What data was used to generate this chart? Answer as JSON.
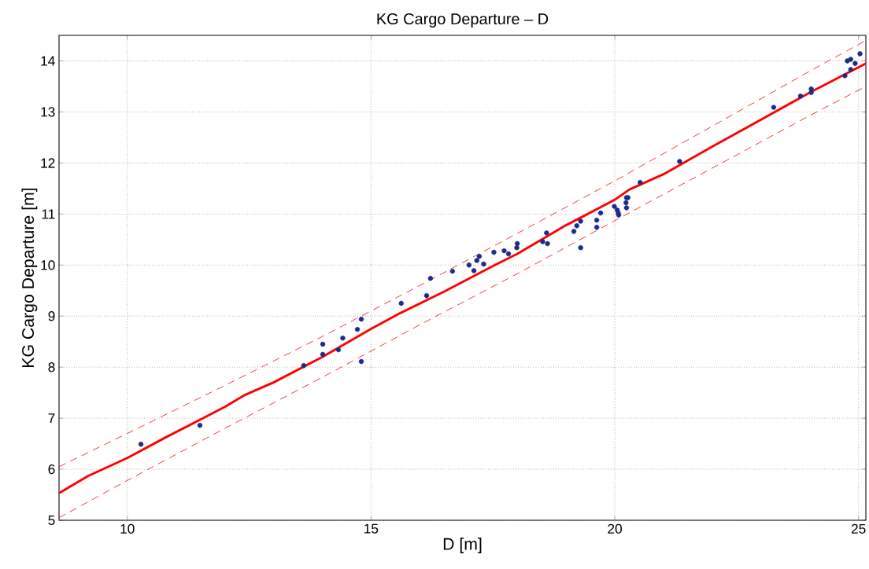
{
  "chart_data": {
    "type": "scatter",
    "title": "KG Cargo Departure – D",
    "xlabel": "D [m]",
    "ylabel": "KG Cargo Departure [m]",
    "xlim": [
      8.6,
      25.15
    ],
    "ylim": [
      5,
      14.5
    ],
    "xticks": [
      10,
      15,
      20,
      25
    ],
    "yticks": [
      5,
      6,
      7,
      8,
      9,
      10,
      11,
      12,
      13,
      14
    ],
    "grid": true,
    "series": [
      {
        "type": "line",
        "color": "#ff0000",
        "line_style": "solid",
        "marker": "none",
        "x": [
          8.6,
          9.2,
          10,
          10.8,
          12,
          12.4,
          13,
          14,
          15,
          15.6,
          16.5,
          17.5,
          18,
          19,
          20,
          20.3,
          21,
          22,
          23,
          24,
          25.15
        ],
        "values": [
          5.53,
          5.87,
          6.22,
          6.63,
          7.22,
          7.45,
          7.7,
          8.2,
          8.75,
          9.06,
          9.48,
          9.98,
          10.22,
          10.78,
          11.28,
          11.48,
          11.78,
          12.32,
          12.85,
          13.38,
          13.95
        ]
      },
      {
        "type": "line",
        "color": "#ff0000",
        "line_style": "dashed",
        "marker": "none",
        "x": [
          8.6,
          10,
          12,
          14,
          16,
          18,
          20,
          22,
          24,
          25.15
        ],
        "values": [
          6.05,
          6.7,
          7.64,
          8.6,
          9.6,
          10.62,
          11.65,
          12.72,
          13.8,
          14.4
        ]
      },
      {
        "type": "line",
        "color": "#ff0000",
        "line_style": "dashed",
        "marker": "none",
        "x": [
          8.6,
          10,
          12,
          14,
          16,
          18,
          20,
          22,
          24,
          25.15
        ],
        "values": [
          5.05,
          5.78,
          6.8,
          7.8,
          8.83,
          9.83,
          10.87,
          11.9,
          12.93,
          13.5
        ]
      },
      {
        "color": "#1a2d8a",
        "marker": "circle",
        "x": [
          10.28,
          11.49,
          13.62,
          14.01,
          14.01,
          14.33,
          14.42,
          14.72,
          14.8,
          14.8,
          15.62,
          16.14,
          16.22,
          16.67,
          17.01,
          17.11,
          17.17,
          17.22,
          17.31,
          17.52,
          17.73,
          17.82,
          17.99,
          18.0,
          18.52,
          18.6,
          18.62,
          19.16,
          19.22,
          19.3,
          19.3,
          19.63,
          19.63,
          19.71,
          19.99,
          20.05,
          20.07,
          20.08,
          20.24,
          20.23,
          20.24,
          20.27,
          20.52,
          21.33,
          23.26,
          23.81,
          24.03,
          24.03,
          24.72,
          24.77,
          24.84,
          24.84,
          24.93,
          25.03
        ],
        "values": [
          6.49,
          6.86,
          8.03,
          8.45,
          8.25,
          8.34,
          8.57,
          8.74,
          8.94,
          8.11,
          9.25,
          9.4,
          9.74,
          9.88,
          10.0,
          9.89,
          10.09,
          10.17,
          10.02,
          10.25,
          10.28,
          10.22,
          10.34,
          10.42,
          10.46,
          10.63,
          10.42,
          10.66,
          10.77,
          10.86,
          10.34,
          10.88,
          10.74,
          11.02,
          11.15,
          11.08,
          11.02,
          10.98,
          11.32,
          11.22,
          11.12,
          11.32,
          11.62,
          12.03,
          13.09,
          13.31,
          13.45,
          13.38,
          13.71,
          14.0,
          14.03,
          13.83,
          13.95,
          14.14
        ]
      }
    ]
  }
}
